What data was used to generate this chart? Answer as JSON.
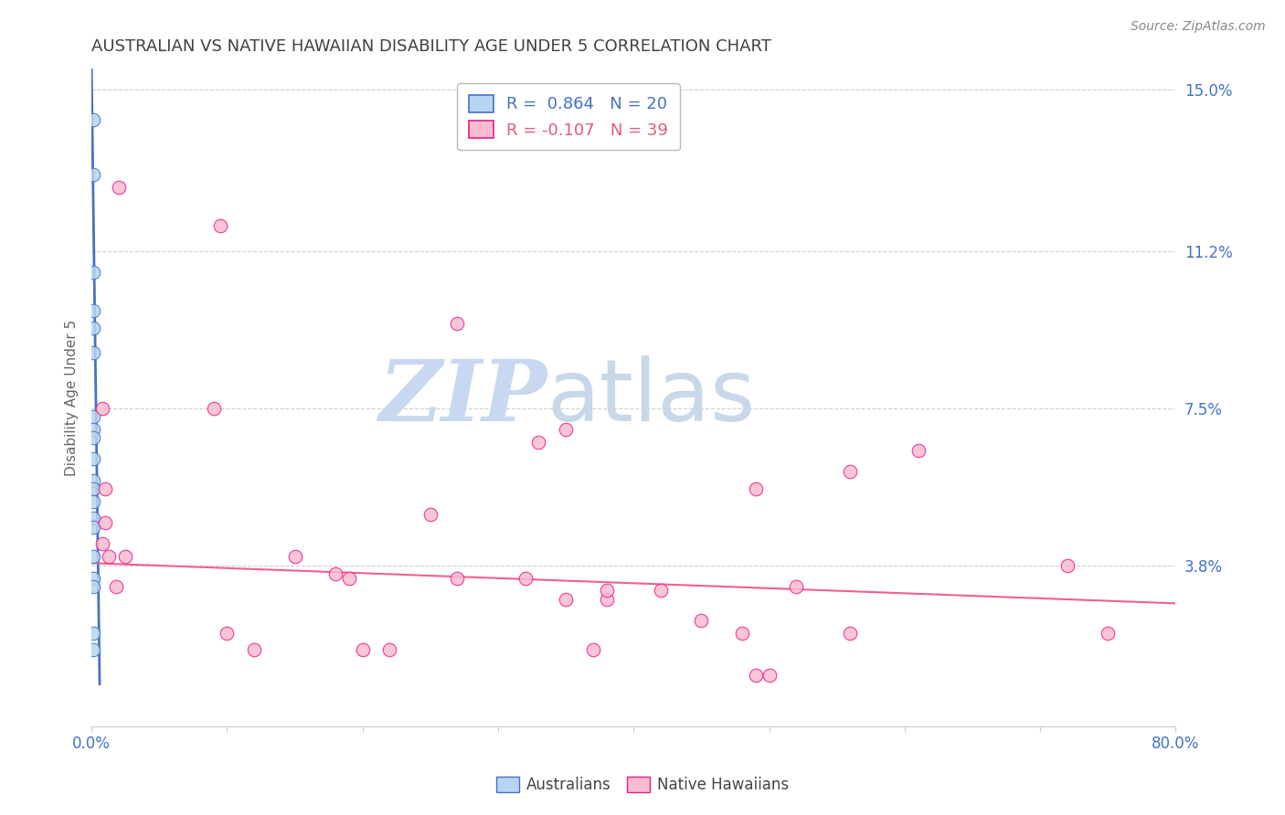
{
  "title": "AUSTRALIAN VS NATIVE HAWAIIAN DISABILITY AGE UNDER 5 CORRELATION CHART",
  "source": "Source: ZipAtlas.com",
  "xlabel": "",
  "ylabel": "Disability Age Under 5",
  "watermark_zip": "ZIP",
  "watermark_atlas": "atlas",
  "xlim": [
    0.0,
    0.8
  ],
  "ylim": [
    0.0,
    0.155
  ],
  "yticks": [
    0.038,
    0.075,
    0.112,
    0.15
  ],
  "ytick_labels": [
    "3.8%",
    "7.5%",
    "11.2%",
    "15.0%"
  ],
  "xtick_positions": [
    0.0,
    0.1,
    0.2,
    0.3,
    0.4,
    0.5,
    0.6,
    0.7,
    0.8
  ],
  "xtick_labels": [
    "0.0%",
    "",
    "",
    "",
    "",
    "",
    "",
    "",
    "80.0%"
  ],
  "australian_R": 0.864,
  "australian_N": 20,
  "hawaiian_R": -0.107,
  "hawaiian_N": 39,
  "australian_color": "#b8d4f0",
  "australian_edge_color": "#4472c4",
  "hawaiian_color": "#f8bbd0",
  "hawaiian_edge_color": "#e91e8c",
  "australian_line_color": "#4472c4",
  "hawaiian_line_color": "#f06090",
  "background_color": "#ffffff",
  "grid_color": "#d0d0d0",
  "title_color": "#404040",
  "source_color": "#808080",
  "right_tick_color": "#4472c4",
  "watermark_color_zip": "#c8d8f0",
  "watermark_color_atlas": "#c8d8e8",
  "australian_points": [
    [
      0.001,
      0.143
    ],
    [
      0.0015,
      0.13
    ],
    [
      0.001,
      0.107
    ],
    [
      0.0012,
      0.098
    ],
    [
      0.001,
      0.094
    ],
    [
      0.001,
      0.088
    ],
    [
      0.001,
      0.073
    ],
    [
      0.001,
      0.07
    ],
    [
      0.001,
      0.068
    ],
    [
      0.001,
      0.063
    ],
    [
      0.001,
      0.058
    ],
    [
      0.001,
      0.056
    ],
    [
      0.001,
      0.053
    ],
    [
      0.001,
      0.049
    ],
    [
      0.001,
      0.047
    ],
    [
      0.001,
      0.04
    ],
    [
      0.001,
      0.035
    ],
    [
      0.001,
      0.033
    ],
    [
      0.001,
      0.022
    ],
    [
      0.001,
      0.018
    ]
  ],
  "hawaiian_points": [
    [
      0.02,
      0.127
    ],
    [
      0.095,
      0.118
    ],
    [
      0.008,
      0.075
    ],
    [
      0.09,
      0.075
    ],
    [
      0.27,
      0.095
    ],
    [
      0.33,
      0.067
    ],
    [
      0.35,
      0.07
    ],
    [
      0.49,
      0.056
    ],
    [
      0.56,
      0.06
    ],
    [
      0.61,
      0.065
    ],
    [
      0.72,
      0.038
    ],
    [
      0.01,
      0.056
    ],
    [
      0.01,
      0.048
    ],
    [
      0.008,
      0.043
    ],
    [
      0.013,
      0.04
    ],
    [
      0.018,
      0.033
    ],
    [
      0.025,
      0.04
    ],
    [
      0.15,
      0.04
    ],
    [
      0.18,
      0.036
    ],
    [
      0.19,
      0.035
    ],
    [
      0.25,
      0.05
    ],
    [
      0.27,
      0.035
    ],
    [
      0.32,
      0.035
    ],
    [
      0.35,
      0.03
    ],
    [
      0.38,
      0.03
    ],
    [
      0.38,
      0.032
    ],
    [
      0.42,
      0.032
    ],
    [
      0.45,
      0.025
    ],
    [
      0.48,
      0.022
    ],
    [
      0.49,
      0.012
    ],
    [
      0.5,
      0.012
    ],
    [
      0.52,
      0.033
    ],
    [
      0.56,
      0.022
    ],
    [
      0.75,
      0.022
    ],
    [
      0.1,
      0.022
    ],
    [
      0.12,
      0.018
    ],
    [
      0.2,
      0.018
    ],
    [
      0.22,
      0.018
    ],
    [
      0.37,
      0.018
    ]
  ],
  "aus_line_x": [
    0.0,
    0.006
  ],
  "aus_line_y_start": 0.155,
  "aus_line_y_end": 0.01,
  "haw_line_x": [
    0.0,
    0.8
  ],
  "haw_line_y_start": 0.0385,
  "haw_line_y_end": 0.029
}
